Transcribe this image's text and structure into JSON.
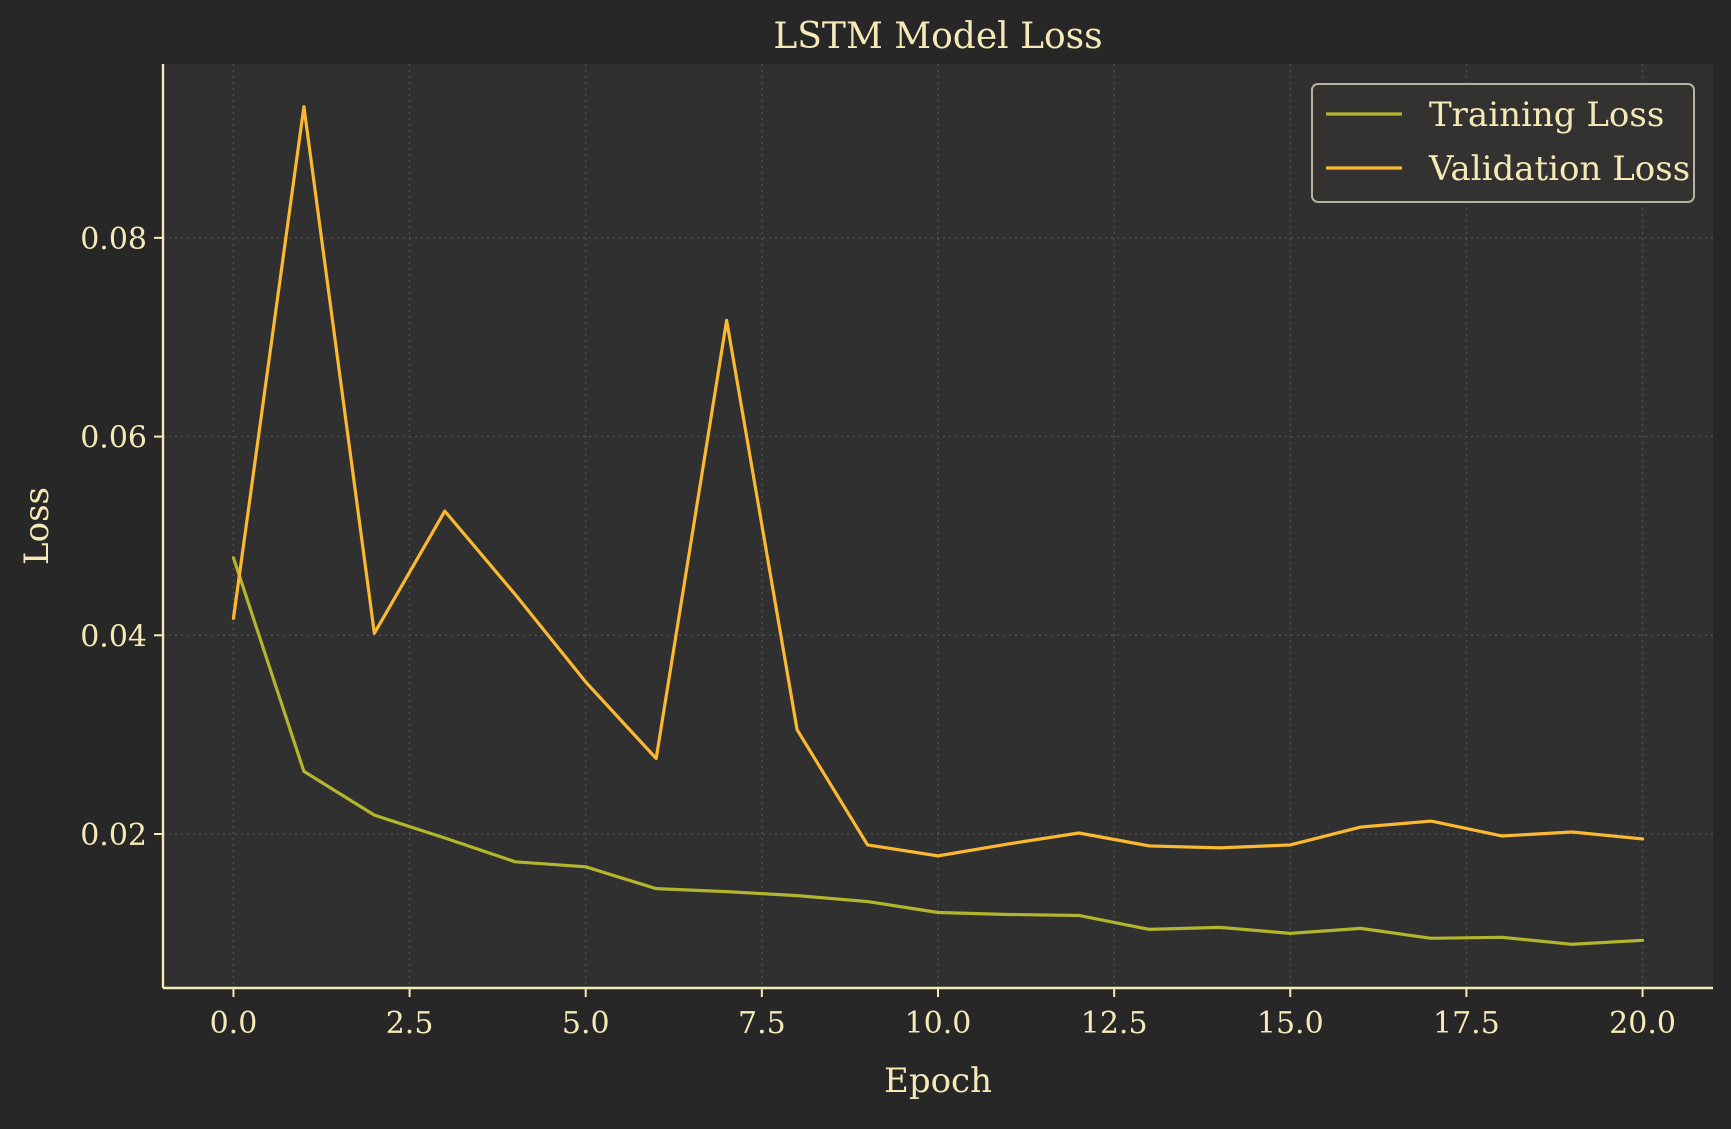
{
  "chart_data": {
    "type": "line",
    "title": "LSTM Model Loss",
    "xlabel": "Epoch",
    "ylabel": "Loss",
    "xlim": [
      -1.0,
      21.0
    ],
    "ylim": [
      0.0045,
      0.0975
    ],
    "x_ticks": [
      0.0,
      2.5,
      5.0,
      7.5,
      10.0,
      12.5,
      15.0,
      17.5,
      20.0
    ],
    "x_tick_labels": [
      "0.0",
      "2.5",
      "5.0",
      "7.5",
      "10.0",
      "12.5",
      "15.0",
      "17.5",
      "20.0"
    ],
    "y_ticks": [
      0.02,
      0.04,
      0.06,
      0.08
    ],
    "y_tick_labels": [
      "0.02",
      "0.04",
      "0.06",
      "0.08"
    ],
    "grid": true,
    "legend_position": "top-right",
    "x": [
      0,
      1,
      2,
      3,
      4,
      5,
      6,
      7,
      8,
      9,
      10,
      11,
      12,
      13,
      14,
      15,
      16,
      17,
      18,
      19,
      20
    ],
    "series": [
      {
        "name": "Training Loss",
        "color": "#b3b52c",
        "values": [
          0.0478,
          0.0263,
          0.0219,
          0.0196,
          0.0172,
          0.0167,
          0.0145,
          0.0142,
          0.0138,
          0.0132,
          0.0121,
          0.0119,
          0.0118,
          0.0104,
          0.0106,
          0.01,
          0.0105,
          0.0095,
          0.0096,
          0.0089,
          0.0093
        ]
      },
      {
        "name": "Validation Loss",
        "color": "#fbb831",
        "values": [
          0.0417,
          0.0932,
          0.0402,
          0.0525,
          0.0441,
          0.0353,
          0.0276,
          0.0717,
          0.0305,
          0.0189,
          0.0178,
          0.019,
          0.0201,
          0.0188,
          0.0186,
          0.0189,
          0.0207,
          0.0213,
          0.0198,
          0.0202,
          0.0195
        ]
      }
    ],
    "colors": {
      "background": "#272727",
      "plot_background": "#313030",
      "axis": "#f6e9b8",
      "text": "#f6e9b8",
      "grid": "#4e4c47",
      "legend_border": "#b7b1a0",
      "legend_background": "#333230"
    }
  }
}
